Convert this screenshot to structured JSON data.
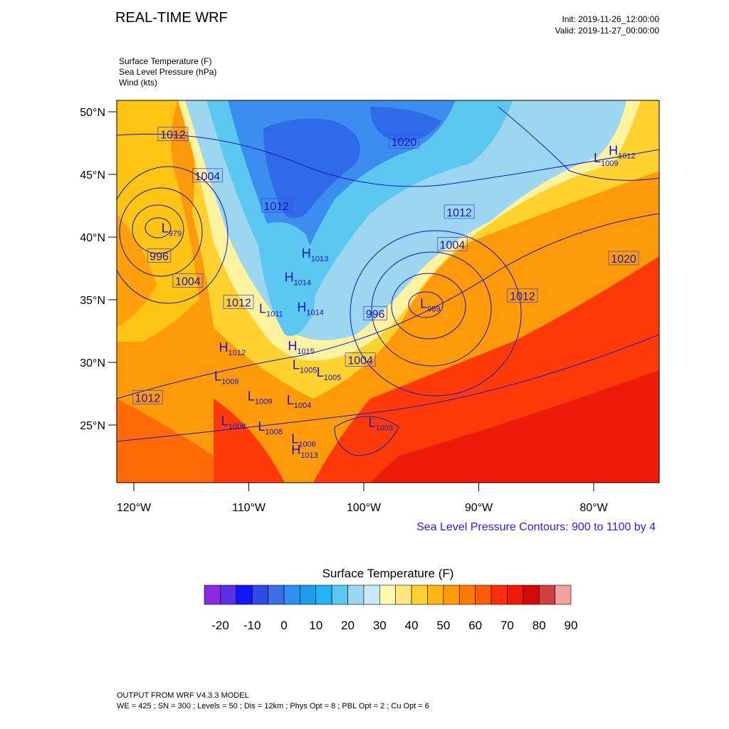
{
  "header": {
    "title": "REAL-TIME WRF",
    "init": "Init: 2019-11-26_12:00:00",
    "valid": "Valid: 2019-11-27_00:00:00"
  },
  "fields": [
    "Surface Temperature   (F)",
    "Sea Level Pressure   (hPa)",
    "Wind   (kts)"
  ],
  "map": {
    "lat_labels": [
      "50°N",
      "45°N",
      "40°N",
      "35°N",
      "30°N",
      "25°N"
    ],
    "lon_labels": [
      "120°W",
      "110°W",
      "100°W",
      "90°W",
      "80°W"
    ],
    "isobar_labels": [
      {
        "text": "1012",
        "lon": -116.6,
        "lat": 48.2
      },
      {
        "text": "1020",
        "lon": -96.5,
        "lat": 47.6
      },
      {
        "text": "1004",
        "lon": -113.6,
        "lat": 44.9
      },
      {
        "text": "1012",
        "lon": -107.6,
        "lat": 42.5
      },
      {
        "text": "1012",
        "lon": -91.7,
        "lat": 42.0
      },
      {
        "text": "996",
        "lon": -117.8,
        "lat": 38.5
      },
      {
        "text": "1004",
        "lon": -92.3,
        "lat": 39.4
      },
      {
        "text": "1020",
        "lon": -77.4,
        "lat": 38.3
      },
      {
        "text": "1004",
        "lon": -115.3,
        "lat": 36.5
      },
      {
        "text": "1012",
        "lon": -86.2,
        "lat": 35.3
      },
      {
        "text": "1012",
        "lon": -110.9,
        "lat": 34.8
      },
      {
        "text": "996",
        "lon": -99.0,
        "lat": 33.9
      },
      {
        "text": "1004",
        "lon": -100.3,
        "lat": 30.2
      },
      {
        "text": "1012",
        "lon": -118.8,
        "lat": 27.2
      }
    ],
    "centers": [
      {
        "type": "L",
        "value": "979",
        "lon": -117.6,
        "lat": 40.7
      },
      {
        "type": "L",
        "value": "1009",
        "lon": -80.0,
        "lat": 46.3
      },
      {
        "type": "H",
        "value": "1012",
        "lon": -78.7,
        "lat": 46.9
      },
      {
        "type": "H",
        "value": "1013",
        "lon": -105.4,
        "lat": 38.7
      },
      {
        "type": "H",
        "value": "1014",
        "lon": -106.9,
        "lat": 36.8
      },
      {
        "type": "L",
        "value": "989",
        "lon": -95.1,
        "lat": 34.7
      },
      {
        "type": "L",
        "value": "1011",
        "lon": -109.1,
        "lat": 34.3
      },
      {
        "type": "H",
        "value": "1014",
        "lon": -105.8,
        "lat": 34.4
      },
      {
        "type": "H",
        "value": "1012",
        "lon": -112.6,
        "lat": 31.2
      },
      {
        "type": "H",
        "value": "1015",
        "lon": -106.6,
        "lat": 31.3
      },
      {
        "type": "L",
        "value": "1005",
        "lon": -106.2,
        "lat": 29.8
      },
      {
        "type": "L",
        "value": "1005",
        "lon": -104.1,
        "lat": 29.2
      },
      {
        "type": "L",
        "value": "1009",
        "lon": -113.0,
        "lat": 28.9
      },
      {
        "type": "L",
        "value": "1009",
        "lon": -110.1,
        "lat": 27.3
      },
      {
        "type": "L",
        "value": "1004",
        "lon": -106.7,
        "lat": 27.0
      },
      {
        "type": "L",
        "value": "1008",
        "lon": -112.4,
        "lat": 25.3
      },
      {
        "type": "L",
        "value": "1008",
        "lon": -109.2,
        "lat": 24.9
      },
      {
        "type": "L",
        "value": "1003",
        "lon": -99.6,
        "lat": 25.2
      },
      {
        "type": "L",
        "value": "1006",
        "lon": -106.3,
        "lat": 23.9
      },
      {
        "type": "H",
        "value": "1013",
        "lon": -106.3,
        "lat": 23.0
      }
    ]
  },
  "contour_note": "Sea Level Pressure Contours: 900 to 1100 by 4",
  "colorbar": {
    "title": "Surface Temperature  (F)",
    "labels": [
      "-20",
      "-10",
      "0",
      "10",
      "20",
      "30",
      "40",
      "50",
      "60",
      "70",
      "80",
      "90"
    ],
    "colors": [
      "#8a2be2",
      "#5b2ee8",
      "#1414ff",
      "#2f4ae6",
      "#3b6ee8",
      "#2e8ef2",
      "#1e9df0",
      "#22b4f5",
      "#5cc8f2",
      "#9dd6f0",
      "#c8e8f7",
      "#fffab0",
      "#ffe680",
      "#ffd230",
      "#ffb614",
      "#ff9a0a",
      "#ff7a05",
      "#ff5a08",
      "#ff2e0a",
      "#f01a0a",
      "#d20a0a",
      "#d04040",
      "#f5a0a0"
    ]
  },
  "footer": {
    "line1": "OUTPUT FROM WRF V4.3.3 MODEL",
    "line2": "WE = 425 ; SN = 300 ; Levels = 50 ; Dis = 12km ; Phys Opt = 8 ; PBL Opt = 2 ; Cu Opt = 6"
  }
}
